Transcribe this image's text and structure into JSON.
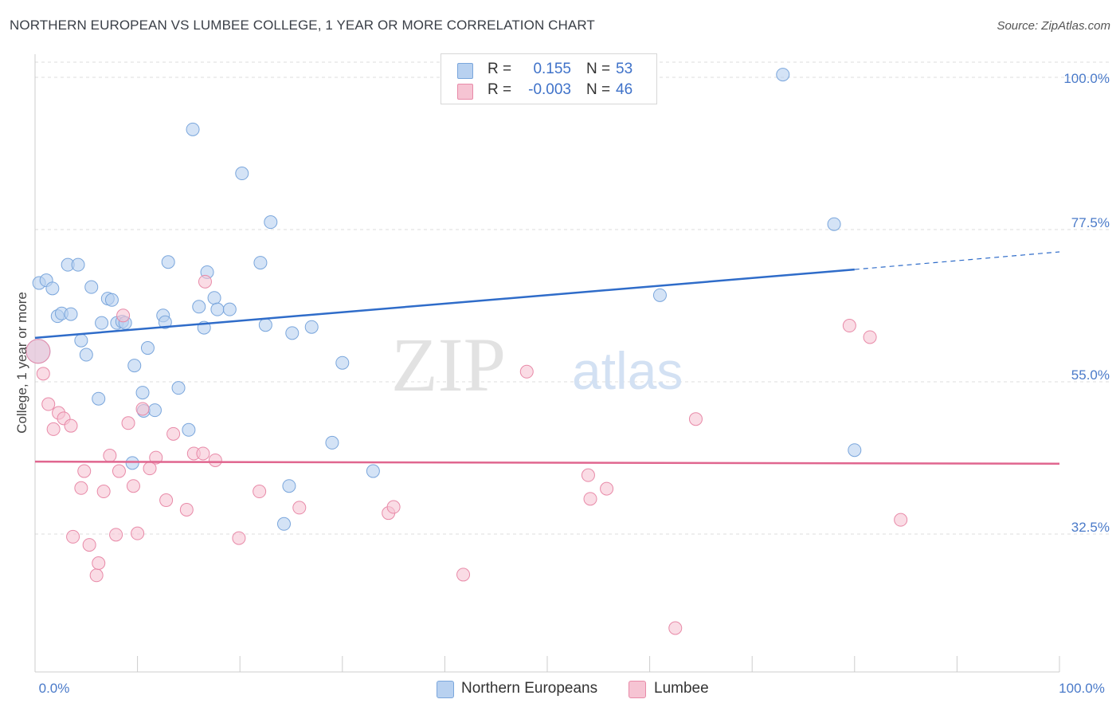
{
  "header": {
    "title": "NORTHERN EUROPEAN VS LUMBEE COLLEGE, 1 YEAR OR MORE CORRELATION CHART",
    "source": "Source: ZipAtlas.com"
  },
  "legend": {
    "rows": [
      {
        "r_label": "R =",
        "r_value": "0.155",
        "n_label": "N =",
        "n_value": "53"
      },
      {
        "r_label": "R =",
        "r_value": "-0.003",
        "n_label": "N =",
        "n_value": "46"
      }
    ],
    "bottom": [
      "Northern Europeans",
      "Lumbee"
    ]
  },
  "watermark": {
    "zip": "ZIP",
    "atlas": "atlas"
  },
  "colors": {
    "blue_fill": "#b8d1f0",
    "blue_stroke": "#7aa6dc",
    "blue_line": "#2f6cc9",
    "pink_fill": "#f6c4d3",
    "pink_stroke": "#e88aa8",
    "pink_line": "#e0668f",
    "tick_text": "#4a7ac9",
    "grid": "#dddddd"
  },
  "chart_data": {
    "type": "scatter",
    "title": "NORTHERN EUROPEAN VS LUMBEE COLLEGE, 1 YEAR OR MORE CORRELATION CHART",
    "xlabel": "",
    "ylabel": "College, 1 year or more",
    "xlim": [
      0,
      100
    ],
    "ylim": [
      12,
      102
    ],
    "x_tick_labels": [
      "0.0%",
      "100.0%"
    ],
    "y_tick_labels": [
      "100.0%",
      "77.5%",
      "55.0%",
      "32.5%"
    ],
    "y_ticks": [
      100,
      77.5,
      55,
      32.5
    ],
    "grid": true,
    "legend_position": "top-center",
    "series": [
      {
        "name": "Northern Europeans",
        "color": "#7aa6dc",
        "r": 0.155,
        "n": 53,
        "trend": {
          "x": [
            0,
            80
          ],
          "y": [
            61.5,
            71.6
          ],
          "dashed_extension_to": [
            100,
            74.2
          ]
        },
        "points": [
          [
            0.3,
            59.5
          ],
          [
            0.4,
            69.6
          ],
          [
            1.1,
            70.0
          ],
          [
            1.7,
            68.8
          ],
          [
            2.2,
            64.7
          ],
          [
            2.6,
            65.1
          ],
          [
            3.5,
            65.0
          ],
          [
            3.2,
            72.3
          ],
          [
            4.2,
            72.3
          ],
          [
            4.5,
            61.1
          ],
          [
            5.0,
            59.0
          ],
          [
            5.5,
            69.0
          ],
          [
            6.2,
            52.5
          ],
          [
            6.5,
            63.7
          ],
          [
            7.1,
            67.3
          ],
          [
            7.5,
            67.1
          ],
          [
            8.0,
            63.7
          ],
          [
            8.5,
            63.9
          ],
          [
            8.8,
            63.7
          ],
          [
            9.5,
            43.0
          ],
          [
            9.7,
            57.4
          ],
          [
            10.5,
            53.4
          ],
          [
            10.6,
            50.7
          ],
          [
            11.0,
            60.0
          ],
          [
            11.7,
            50.8
          ],
          [
            12.5,
            64.8
          ],
          [
            12.7,
            63.8
          ],
          [
            13.0,
            72.7
          ],
          [
            14.0,
            54.1
          ],
          [
            15.0,
            47.9
          ],
          [
            15.4,
            92.3
          ],
          [
            16.0,
            66.1
          ],
          [
            16.5,
            63.0
          ],
          [
            16.8,
            71.2
          ],
          [
            17.5,
            67.4
          ],
          [
            17.8,
            65.7
          ],
          [
            19.0,
            65.7
          ],
          [
            20.2,
            85.8
          ],
          [
            22.0,
            72.6
          ],
          [
            22.5,
            63.4
          ],
          [
            23.0,
            78.6
          ],
          [
            24.3,
            34.0
          ],
          [
            24.8,
            39.6
          ],
          [
            25.1,
            62.2
          ],
          [
            27.0,
            63.1
          ],
          [
            29.0,
            46.0
          ],
          [
            30.0,
            57.8
          ],
          [
            33.0,
            41.8
          ],
          [
            41.0,
            100.5
          ],
          [
            61.0,
            67.8
          ],
          [
            73.0,
            100.4
          ],
          [
            80.0,
            44.9
          ],
          [
            78.0,
            78.3
          ]
        ]
      },
      {
        "name": "Lumbee",
        "color": "#e88aa8",
        "r": -0.003,
        "n": 46,
        "trend": {
          "x": [
            0,
            100
          ],
          "y": [
            43.2,
            42.9
          ]
        },
        "points": [
          [
            0.3,
            59.5
          ],
          [
            0.8,
            56.2
          ],
          [
            1.3,
            51.7
          ],
          [
            1.8,
            48.0
          ],
          [
            2.3,
            50.4
          ],
          [
            2.8,
            49.6
          ],
          [
            3.5,
            48.5
          ],
          [
            3.7,
            32.1
          ],
          [
            4.5,
            39.3
          ],
          [
            4.8,
            41.8
          ],
          [
            5.3,
            30.9
          ],
          [
            6.0,
            26.4
          ],
          [
            6.2,
            28.2
          ],
          [
            6.7,
            38.8
          ],
          [
            7.3,
            44.1
          ],
          [
            7.9,
            32.4
          ],
          [
            8.2,
            41.8
          ],
          [
            8.6,
            64.8
          ],
          [
            9.1,
            48.9
          ],
          [
            9.6,
            39.6
          ],
          [
            10.0,
            32.6
          ],
          [
            10.5,
            51.0
          ],
          [
            11.2,
            42.2
          ],
          [
            11.8,
            43.8
          ],
          [
            12.8,
            37.5
          ],
          [
            13.5,
            47.3
          ],
          [
            14.8,
            36.1
          ],
          [
            15.5,
            44.4
          ],
          [
            16.4,
            44.4
          ],
          [
            16.6,
            69.8
          ],
          [
            17.6,
            43.4
          ],
          [
            19.9,
            31.9
          ],
          [
            21.9,
            38.8
          ],
          [
            25.8,
            36.4
          ],
          [
            34.5,
            35.6
          ],
          [
            35.0,
            36.5
          ],
          [
            41.8,
            26.5
          ],
          [
            48.0,
            56.5
          ],
          [
            54.0,
            41.2
          ],
          [
            54.2,
            37.7
          ],
          [
            55.8,
            39.2
          ],
          [
            62.5,
            18.6
          ],
          [
            64.5,
            49.5
          ],
          [
            79.5,
            63.3
          ],
          [
            81.5,
            61.6
          ],
          [
            84.5,
            34.6
          ]
        ]
      }
    ]
  }
}
